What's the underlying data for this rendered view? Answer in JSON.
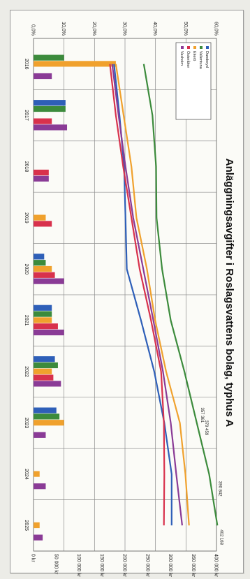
{
  "chart_data": {
    "type": "bar",
    "title": "Anläggningsavgifter i Roslagsvattens bolag, typhus A",
    "categories": [
      "2016",
      "2017",
      "2018",
      "2019",
      "2020",
      "2021",
      "2022",
      "2023",
      "2024",
      "2025"
    ],
    "y_left": {
      "ticks": [
        "0,0%",
        "10,0%",
        "20,0%",
        "30,0%",
        "40,0%",
        "50,0%",
        "60,0%"
      ],
      "ylim": [
        0,
        60
      ]
    },
    "y_right": {
      "ticks": [
        "0 kr",
        "50 000 kr",
        "100 000 kr",
        "150 000 kr",
        "200 000 kr",
        "250 000 kr",
        "300 000 kr",
        "350 000 kr",
        "400 000 kr"
      ],
      "ylim": [
        0,
        400000
      ]
    },
    "bar_series": [
      {
        "name": "Danderyd",
        "color": "#2e5fb8",
        "values": [
          0,
          10.5,
          0,
          0,
          3.5,
          6,
          7,
          7.5,
          0,
          0
        ]
      },
      {
        "name": "Vallentuna",
        "color": "#3c8b3c",
        "values": [
          10,
          10.5,
          0,
          0,
          4,
          6,
          8,
          8.5,
          0,
          0
        ]
      },
      {
        "name": "Ekerö",
        "color": "#f0a12d",
        "values": [
          27,
          0,
          0,
          4,
          6,
          6,
          6,
          10,
          2,
          2
        ]
      },
      {
        "name": "Österåker",
        "color": "#d8314c",
        "values": [
          0,
          6,
          5,
          6,
          7,
          8,
          6.5,
          0,
          0,
          0
        ]
      },
      {
        "name": "Vaxholm",
        "color": "#8a3b96",
        "values": [
          6,
          11,
          5,
          0,
          10,
          10,
          9,
          4,
          4,
          3
        ]
      }
    ],
    "line_series": [
      {
        "name": "Danderyd",
        "color": "#2e5fb8",
        "values": [
          176000,
          188000,
          198000,
          201000,
          204000,
          235000,
          264000,
          286000,
          302000,
          302000
        ]
      },
      {
        "name": "Vallentuna",
        "color": "#3c8b3c",
        "values": [
          241000,
          260000,
          268000,
          269000,
          281000,
          300000,
          330000,
          357000,
          384000,
          402000
        ]
      },
      {
        "name": "Ekerö",
        "color": "#f0a12d",
        "values": [
          180000,
          197000,
          214000,
          225000,
          248000,
          266000,
          290000,
          320000,
          332000,
          340000
        ]
      },
      {
        "name": "Österåker",
        "color": "#d8314c",
        "values": [
          167000,
          180000,
          196000,
          214000,
          232000,
          257000,
          279000,
          285000,
          286000,
          285000
        ]
      },
      {
        "name": "Vaxholm",
        "color": "#8a3b96",
        "values": [
          172000,
          186000,
          201000,
          218000,
          240000,
          262000,
          283000,
          300000,
          312000,
          325000
        ]
      }
    ],
    "annotations": [
      "402 168",
      "390 842",
      "379 459",
      "357 361"
    ],
    "legend": {
      "placement": "top-left",
      "entries": [
        "Danderyd",
        "Vallentuna",
        "Ekerö",
        "Österåker",
        "Vaxholm"
      ]
    }
  }
}
